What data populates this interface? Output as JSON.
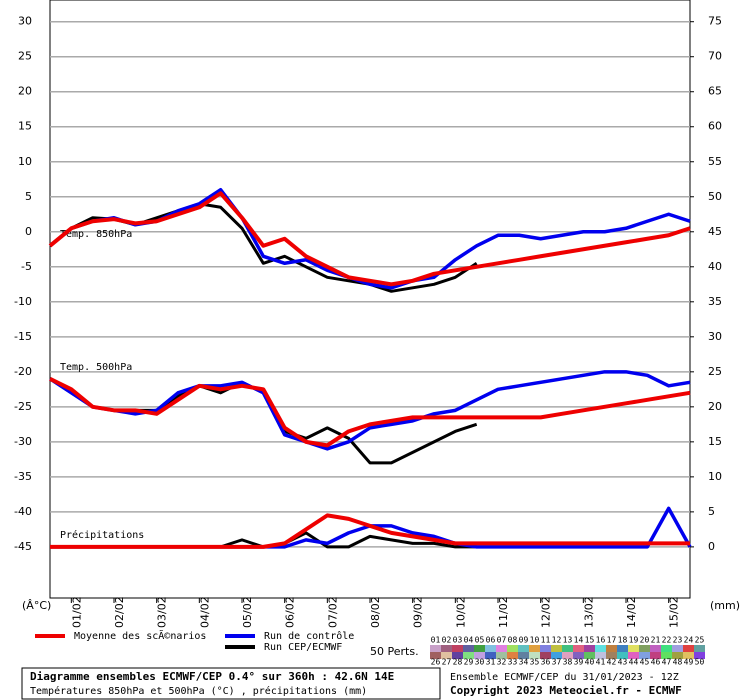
{
  "chart_data": {
    "type": "line",
    "x": [
      0,
      12,
      24,
      36,
      48,
      60,
      72,
      84,
      96,
      108,
      120,
      132,
      144,
      156,
      168,
      180,
      192,
      204,
      216,
      228,
      240,
      252,
      264,
      276,
      288,
      300,
      312,
      324,
      336,
      348,
      360
    ],
    "xlim": [
      0,
      360
    ],
    "xticks": [
      {
        "value": 12,
        "label": "01/02"
      },
      {
        "value": 36,
        "label": "02/02"
      },
      {
        "value": 60,
        "label": "03/02"
      },
      {
        "value": 84,
        "label": "04/02"
      },
      {
        "value": 108,
        "label": "05/02"
      },
      {
        "value": 132,
        "label": "06/02"
      },
      {
        "value": 156,
        "label": "07/02"
      },
      {
        "value": 180,
        "label": "08/02"
      },
      {
        "value": 204,
        "label": "09/02"
      },
      {
        "value": 228,
        "label": "10/02"
      },
      {
        "value": 252,
        "label": "11/02"
      },
      {
        "value": 276,
        "label": "12/02"
      },
      {
        "value": 300,
        "label": "13/02"
      },
      {
        "value": 324,
        "label": "14/02"
      },
      {
        "value": 348,
        "label": "15/02"
      }
    ],
    "ylim": [
      -52.3,
      33.1
    ],
    "yticks": [
      -45,
      -40,
      -35,
      -30,
      -25,
      -20,
      -15,
      -10,
      -5,
      0,
      5,
      10,
      15,
      20,
      25,
      30
    ],
    "y2lim": [
      -7.3,
      78.1
    ],
    "y2ticks": [
      0,
      5,
      10,
      15,
      20,
      25,
      30,
      35,
      40,
      45,
      50,
      55,
      60,
      65,
      70,
      75
    ],
    "ylabel": "(Â°C)",
    "y2label": "(mm)",
    "grid": true,
    "panels": [
      {
        "label": "Temp. 850hPa"
      },
      {
        "label": "Temp. 500hPa"
      },
      {
        "label": "Précipitations",
        "axis": "y2"
      }
    ],
    "series": [
      {
        "name": "Run CEP/ECMWF",
        "color": "#000000",
        "values": [
          [
            -2,
            0.5,
            2,
            1.8,
            1,
            2,
            3,
            4,
            3.5,
            0.5,
            -4.5,
            -3.5,
            -5,
            -6.5,
            -7,
            -7.5,
            -8.5,
            -8,
            -7.5,
            -6.5,
            -4.5,
            null,
            null,
            null,
            null,
            null,
            null,
            null,
            null,
            null,
            null
          ],
          [
            -21,
            -23,
            -25,
            -25.5,
            -25.5,
            -25.5,
            -23.5,
            -22,
            -23,
            -21.5,
            -23,
            -28.5,
            -29.5,
            -28,
            -29.5,
            -33,
            -33,
            -31.5,
            -30,
            -28.5,
            -27.5,
            null,
            null,
            null,
            null,
            null,
            null,
            null,
            null,
            null,
            null
          ],
          [
            0,
            0,
            0,
            0,
            0,
            0,
            0,
            0,
            0,
            1,
            0,
            0.5,
            2,
            0,
            0,
            1.5,
            1,
            0.5,
            0.5,
            0,
            0,
            null,
            null,
            null,
            null,
            null,
            null,
            null,
            null,
            null,
            null
          ]
        ]
      },
      {
        "name": "Run de contrôle",
        "color": "#0000ee",
        "values": [
          [
            -2,
            0.5,
            1.5,
            2,
            1,
            1.5,
            3,
            4,
            6,
            2,
            -3.5,
            -4.5,
            -4,
            -5.5,
            -6.5,
            -7.5,
            -8,
            -7,
            -6.5,
            -4,
            -2,
            -0.5,
            -0.5,
            -1,
            -0.5,
            0,
            0,
            0.5,
            1.5,
            2.5,
            1.5
          ],
          [
            -21,
            -23,
            -25,
            -25.5,
            -26,
            -25.5,
            -23,
            -22,
            -22,
            -21.5,
            -23,
            -29,
            -30,
            -31,
            -30,
            -28,
            -27.5,
            -27,
            -26,
            -25.5,
            -24,
            -22.5,
            -22,
            -21.5,
            -21,
            -20.5,
            -20,
            -20,
            -20.5,
            -22,
            -21.5
          ],
          [
            0,
            0,
            0,
            0,
            0,
            0,
            0,
            0,
            0,
            0,
            0,
            0,
            1,
            0.5,
            2,
            3,
            3,
            2,
            1.5,
            0.5,
            0,
            0,
            0,
            0,
            0,
            0,
            0,
            0,
            0,
            5.5,
            0
          ]
        ]
      },
      {
        "name": "Moyenne des scÃ©narios",
        "color": "#ee0000",
        "values": [
          [
            -2,
            0.5,
            1.5,
            1.8,
            1.2,
            1.5,
            2.5,
            3.5,
            5.5,
            2,
            -2,
            -1,
            -3.5,
            -5,
            -6.5,
            -7,
            -7.5,
            -7,
            -6,
            -5.5,
            -5,
            -4.5,
            -4,
            -3.5,
            -3,
            -2.5,
            -2,
            -1.5,
            -1,
            -0.5,
            0.5
          ],
          [
            -21,
            -22.5,
            -25,
            -25.5,
            -25.5,
            -26,
            -24,
            -22,
            -22.5,
            -22,
            -22.5,
            -28,
            -30,
            -30.5,
            -28.5,
            -27.5,
            -27,
            -26.5,
            -26.5,
            -26.5,
            -26.5,
            -26.5,
            -26.5,
            -26.5,
            -26,
            -25.5,
            -25,
            -24.5,
            -24,
            -23.5,
            -23
          ],
          [
            0,
            0,
            0,
            0,
            0,
            0,
            0,
            0,
            0,
            0,
            0,
            0.5,
            2.5,
            4.5,
            4,
            3,
            2,
            1.5,
            1,
            0.5,
            0.5,
            0.5,
            0.5,
            0.5,
            0.5,
            0.5,
            0.5,
            0.5,
            0.5,
            0.5,
            0.5
          ]
        ]
      }
    ],
    "perturbations": {
      "label": "50 Perts.",
      "members": [
        "01",
        "02",
        "03",
        "04",
        "05",
        "06",
        "07",
        "08",
        "09",
        "10",
        "11",
        "12",
        "13",
        "14",
        "15",
        "16",
        "17",
        "18",
        "19",
        "20",
        "21",
        "22",
        "23",
        "24",
        "25",
        "26",
        "27",
        "28",
        "29",
        "30",
        "31",
        "32",
        "33",
        "34",
        "35",
        "36",
        "37",
        "38",
        "39",
        "40",
        "41",
        "42",
        "43",
        "44",
        "45",
        "46",
        "47",
        "48",
        "49",
        "50"
      ],
      "colors": [
        "#c8a0c8",
        "#a06080",
        "#c04060",
        "#6060a0",
        "#40a040",
        "#80c0e0",
        "#e080e0",
        "#a0e060",
        "#60c0c0",
        "#e0a040",
        "#8080e0",
        "#c0c040",
        "#40c080",
        "#e06080",
        "#a040a0",
        "#60e0e0",
        "#c08040",
        "#4080c0",
        "#e0e060",
        "#80a060",
        "#c060c0",
        "#40e080",
        "#a0a0e0",
        "#e04040",
        "#60a0a0",
        "#a06060",
        "#e0c0a0",
        "#6040a0",
        "#80e080",
        "#c0a0e0",
        "#4060c0",
        "#a0c0a0",
        "#e08040",
        "#6080a0",
        "#c0e0c0",
        "#a04060",
        "#40a0e0",
        "#e0a0c0",
        "#8060c0",
        "#60c060",
        "#c0c0e0",
        "#a08060",
        "#40c0c0",
        "#e060c0",
        "#80a0e0",
        "#c04080",
        "#60e060",
        "#a0a040",
        "#e0c060",
        "#8040e0"
      ]
    },
    "info": {
      "title": "Diagramme ensembles ECMWF/CEP 0.4° sur 360h : 42.6N 14E",
      "subtitle": "Températures 850hPa et 500hPa (°C) , précipitations (mm)",
      "run": "Ensemble ECMWF/CEP du 31/01/2023 - 12Z",
      "copyright": "Copyright 2023 Meteociel.fr - ECMWF"
    }
  }
}
